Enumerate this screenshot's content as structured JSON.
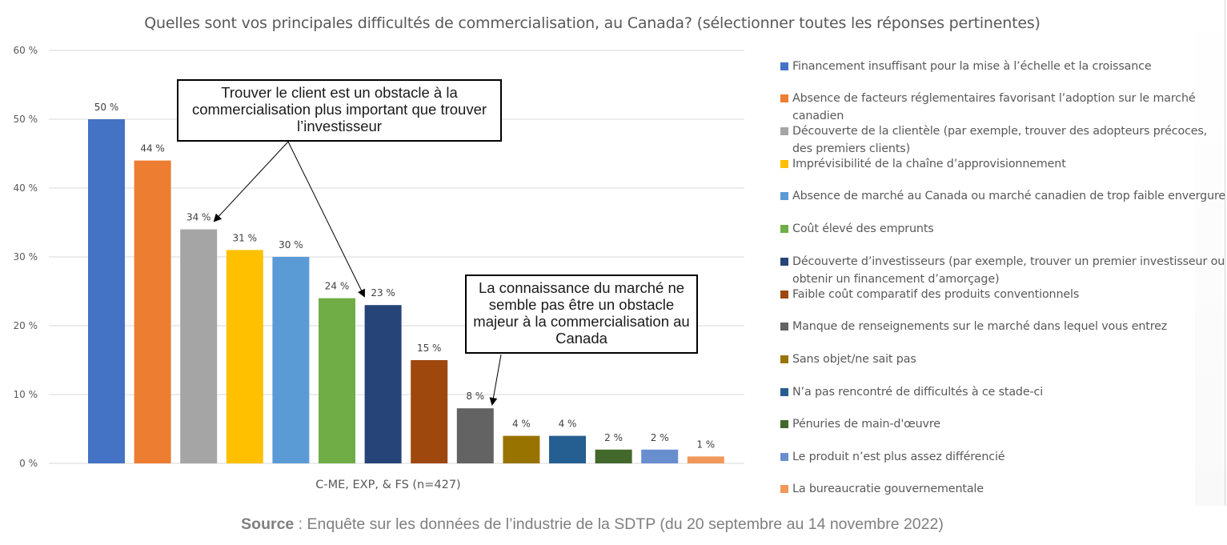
{
  "chart_data": {
    "type": "bar",
    "title": "Quelles sont vos principales difficultés de commercialisation, au Canada? (sélectionner toutes les réponses pertinentes)",
    "xlabel": "C-ME, EXP, & FS (n=427)",
    "ylabel": "",
    "ylim": [
      0,
      60
    ],
    "yticks": [
      0,
      10,
      20,
      30,
      40,
      50,
      60
    ],
    "ytick_labels": [
      "0 %",
      "10 %",
      "20 %",
      "30 %",
      "40 %",
      "50 %",
      "60 %"
    ],
    "grid": true,
    "legend_position": "right",
    "series": [
      {
        "name": "Financement insuffisant pour la mise à l’échelle et la croissance",
        "value": 50,
        "label": "50 %",
        "color": "#4472C4"
      },
      {
        "name": "Absence de facteurs réglementaires favorisant l’adoption sur le marché canadien",
        "value": 44,
        "label": "44 %",
        "color": "#ED7D31"
      },
      {
        "name": "Découverte de la clientèle (par exemple, trouver des adopteurs précoces, des premiers clients)",
        "value": 34,
        "label": "34 %",
        "color": "#A5A5A5"
      },
      {
        "name": "Imprévisibilité de la chaîne d’approvisionnement",
        "value": 31,
        "label": "31 %",
        "color": "#FFC000"
      },
      {
        "name": "Absence de marché au Canada ou marché canadien de trop faible envergure",
        "value": 30,
        "label": "30 %",
        "color": "#5B9BD5"
      },
      {
        "name": "Coût élevé des emprunts",
        "value": 24,
        "label": "24 %",
        "color": "#70AD47"
      },
      {
        "name": "Découverte d’investisseurs (par exemple, trouver un premier investisseur ou obtenir un financement d’amorçage)",
        "value": 23,
        "label": "23 %",
        "color": "#264478"
      },
      {
        "name": "Faible coût comparatif des produits conventionnels",
        "value": 15,
        "label": "15 %",
        "color": "#9E480E"
      },
      {
        "name": "Manque de renseignements sur le marché dans lequel vous entrez",
        "value": 8,
        "label": "8 %",
        "color": "#636363"
      },
      {
        "name": "Sans objet/ne sait pas",
        "value": 4,
        "label": "4 %",
        "color": "#997300"
      },
      {
        "name": "N’a pas rencontré de difficultés à ce stade-ci",
        "value": 4,
        "label": "4 %",
        "color": "#255E91"
      },
      {
        "name": "Pénuries de main-d'œuvre",
        "value": 2,
        "label": "2 %",
        "color": "#43682B"
      },
      {
        "name": "Le produit n’est plus assez différencié",
        "value": 2,
        "label": "2 %",
        "color": "#698ED0"
      },
      {
        "name": "La bureaucratie gouvernementale",
        "value": 1,
        "label": "1 %",
        "color": "#F1975A"
      }
    ],
    "annotations": [
      {
        "text": "Trouver le client est un obstacle à la commercialisation plus important que trouver l’investisseur",
        "points_to": [
          "Découverte de la clientèle",
          "Découverte d’investisseurs"
        ]
      },
      {
        "text": "La connaissance du marché ne semble pas être un obstacle majeur à la commercialisation au Canada",
        "points_to": [
          "Manque de renseignements sur le marché"
        ]
      }
    ]
  },
  "legend": {
    "items": [
      {
        "label": "Financement insuffisant pour la mise à l’échelle et la croissance",
        "color": "#4472C4"
      },
      {
        "label": "Absence de facteurs réglementaires favorisant l’adoption sur le marché canadien",
        "color": "#ED7D31"
      },
      {
        "label": "Découverte de la clientèle (par exemple, trouver des adopteurs précoces, des premiers clients)",
        "color": "#A5A5A5"
      },
      {
        "label": "Imprévisibilité de la chaîne d’approvisionnement",
        "color": "#FFC000"
      },
      {
        "label": "Absence de marché au Canada ou marché canadien de trop faible envergure",
        "color": "#5B9BD5"
      },
      {
        "label": "Coût élevé des emprunts",
        "color": "#70AD47"
      },
      {
        "label": "Découverte d’investisseurs (par exemple, trouver un premier investisseur ou obtenir un financement d’amorçage)",
        "color": "#264478"
      },
      {
        "label": "Faible coût comparatif des produits conventionnels",
        "color": "#9E480E"
      },
      {
        "label": "Manque de renseignements sur le marché dans lequel vous entrez",
        "color": "#636363"
      },
      {
        "label": "Sans objet/ne sait pas",
        "color": "#997300"
      },
      {
        "label": "N’a pas rencontré de difficultés à ce stade-ci",
        "color": "#255E91"
      },
      {
        "label": "Pénuries de main-d'œuvre",
        "color": "#43682B"
      },
      {
        "label": "Le produit n’est plus assez différencié",
        "color": "#698ED0"
      },
      {
        "label": "La bureaucratie gouvernementale",
        "color": "#F1975A"
      }
    ]
  },
  "callouts": {
    "customer": "Trouver le client est un obstacle à la commercialisation plus important que trouver l’investisseur",
    "market": "La connaissance du marché ne semble pas être un obstacle majeur à la commercialisation au Canada"
  },
  "source": {
    "label": "Source",
    "separator": " : ",
    "text": "Enquête sur les données de l’industrie de la SDTP (du 20 septembre au 14 novembre 2022)"
  }
}
